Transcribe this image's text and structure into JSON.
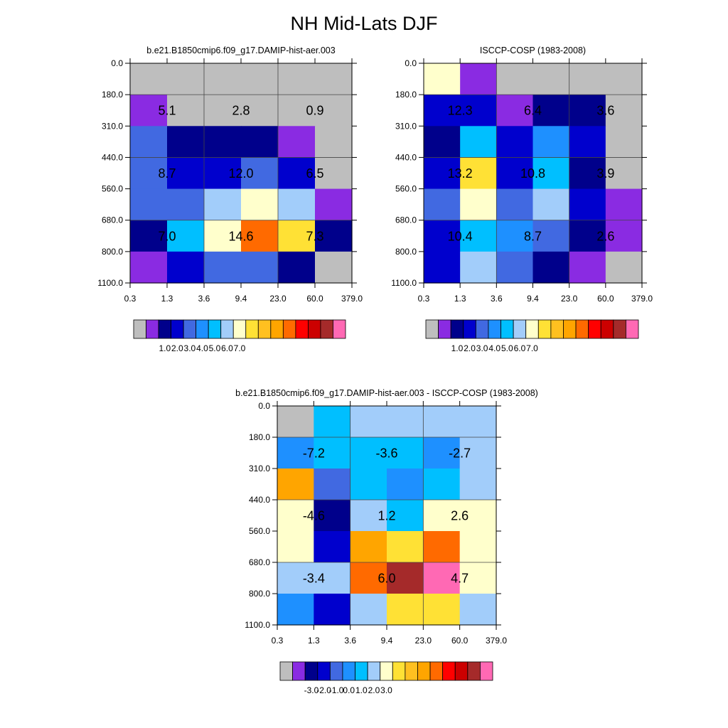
{
  "figure": {
    "title": "NH Mid-Lats DJF"
  },
  "chart_data": [
    {
      "type": "heatmap",
      "title": "b.e21.B1850cmip6.f09_g17.DAMIP-hist-aer.003",
      "x_ticks": [
        "0.3",
        "1.3",
        "3.6",
        "9.4",
        "23.0",
        "60.0",
        "379.0"
      ],
      "y_ticks": [
        "0.0",
        "180.0",
        "310.0",
        "440.0",
        "560.0",
        "680.0",
        "800.0",
        "1100.0"
      ],
      "cell_colors": [
        [
          "#bebebe",
          "#bebebe",
          "#bebebe",
          "#bebebe",
          "#bebebe",
          "#bebebe"
        ],
        [
          "#8a2be2",
          "#bebebe",
          "#bebebe",
          "#bebebe",
          "#bebebe",
          "#bebebe"
        ],
        [
          "#4169e1",
          "#00008b",
          "#00008b",
          "#00008b",
          "#8a2be2",
          "#bebebe"
        ],
        [
          "#4169e1",
          "#0000cd",
          "#0000cd",
          "#4169e1",
          "#0000cd",
          "#bebebe"
        ],
        [
          "#4169e1",
          "#4169e1",
          "#a2cdfa",
          "#ffffcc",
          "#a2cdfa",
          "#8a2be2"
        ],
        [
          "#00008b",
          "#00bfff",
          "#ffffcc",
          "#ff6a00",
          "#ffe135",
          "#00008b"
        ],
        [
          "#8a2be2",
          "#0000cd",
          "#4169e1",
          "#4169e1",
          "#00008b",
          "#bebebe"
        ]
      ],
      "block_labels": [
        [
          "5.1",
          "2.8",
          "0.9"
        ],
        [
          "8.7",
          "12.0",
          "6.5"
        ],
        [
          "7.0",
          "14.6",
          "7.3"
        ]
      ],
      "colorbar": {
        "colors": [
          "#bebebe",
          "#8a2be2",
          "#00008b",
          "#0000cd",
          "#4169e1",
          "#1e90ff",
          "#00bfff",
          "#a2cdfa",
          "#ffffcc",
          "#ffe135",
          "#ffc020",
          "#ffa500",
          "#ff6a00",
          "#ff0000",
          "#cc0000",
          "#a52a2a",
          "#ff69b4"
        ],
        "labels": [
          "1.0",
          "2.0",
          "3.0",
          "4.0",
          "5.0",
          "6.0",
          "7.0"
        ]
      }
    },
    {
      "type": "heatmap",
      "title": "ISCCP-COSP (1983-2008)",
      "x_ticks": [
        "0.3",
        "1.3",
        "3.6",
        "9.4",
        "23.0",
        "60.0",
        "379.0"
      ],
      "y_ticks": [
        "0.0",
        "180.0",
        "310.0",
        "440.0",
        "560.0",
        "680.0",
        "800.0",
        "1100.0"
      ],
      "cell_colors": [
        [
          "#ffffcc",
          "#8a2be2",
          "#bebebe",
          "#bebebe",
          "#bebebe",
          "#bebebe"
        ],
        [
          "#0000cd",
          "#0000cd",
          "#8a2be2",
          "#00008b",
          "#00008b",
          "#bebebe"
        ],
        [
          "#00008b",
          "#00bfff",
          "#0000cd",
          "#1e90ff",
          "#0000cd",
          "#bebebe"
        ],
        [
          "#0000cd",
          "#ffe135",
          "#0000cd",
          "#00bfff",
          "#00008b",
          "#bebebe"
        ],
        [
          "#4169e1",
          "#ffffcc",
          "#4169e1",
          "#a2cdfa",
          "#0000cd",
          "#8a2be2"
        ],
        [
          "#0000cd",
          "#00bfff",
          "#1e90ff",
          "#4169e1",
          "#00008b",
          "#8a2be2"
        ],
        [
          "#0000cd",
          "#a2cdfa",
          "#4169e1",
          "#00008b",
          "#8a2be2",
          "#bebebe"
        ]
      ],
      "block_labels": [
        [
          "12.3",
          "6.4",
          "3.6"
        ],
        [
          "13.2",
          "10.8",
          "3.9"
        ],
        [
          "10.4",
          "8.7",
          "2.6"
        ]
      ],
      "colorbar": {
        "colors": [
          "#bebebe",
          "#8a2be2",
          "#00008b",
          "#0000cd",
          "#4169e1",
          "#1e90ff",
          "#00bfff",
          "#a2cdfa",
          "#ffffcc",
          "#ffe135",
          "#ffc020",
          "#ffa500",
          "#ff6a00",
          "#ff0000",
          "#cc0000",
          "#a52a2a",
          "#ff69b4"
        ],
        "labels": [
          "1.0",
          "2.0",
          "3.0",
          "4.0",
          "5.0",
          "6.0",
          "7.0"
        ]
      }
    },
    {
      "type": "heatmap",
      "title": "b.e21.B1850cmip6.f09_g17.DAMIP-hist-aer.003 - ISCCP-COSP (1983-2008)",
      "x_ticks": [
        "0.3",
        "1.3",
        "3.6",
        "9.4",
        "23.0",
        "60.0",
        "379.0"
      ],
      "y_ticks": [
        "0.0",
        "180.0",
        "310.0",
        "440.0",
        "560.0",
        "680.0",
        "800.0",
        "1100.0"
      ],
      "cell_colors": [
        [
          "#bebebe",
          "#00bfff",
          "#a2cdfa",
          "#a2cdfa",
          "#a2cdfa",
          "#a2cdfa"
        ],
        [
          "#1e90ff",
          "#00bfff",
          "#00bfff",
          "#00bfff",
          "#1e90ff",
          "#a2cdfa"
        ],
        [
          "#ffa500",
          "#4169e1",
          "#00bfff",
          "#1e90ff",
          "#00bfff",
          "#a2cdfa"
        ],
        [
          "#ffffcc",
          "#00008b",
          "#a2cdfa",
          "#00bfff",
          "#ffffcc",
          "#ffffcc"
        ],
        [
          "#ffffcc",
          "#0000cd",
          "#ffa500",
          "#ffe135",
          "#ff6a00",
          "#ffffcc"
        ],
        [
          "#a2cdfa",
          "#a2cdfa",
          "#ff6a00",
          "#a52a2a",
          "#ff69b4",
          "#ffffcc"
        ],
        [
          "#1e90ff",
          "#0000cd",
          "#a2cdfa",
          "#ffe135",
          "#ffe135",
          "#a2cdfa"
        ]
      ],
      "block_labels": [
        [
          "-7.2",
          "-3.6",
          "-2.7"
        ],
        [
          "-4.6",
          "1.2",
          "2.6"
        ],
        [
          "-3.4",
          "6.0",
          "4.7"
        ]
      ],
      "colorbar": {
        "colors": [
          "#bebebe",
          "#8a2be2",
          "#00008b",
          "#0000cd",
          "#4169e1",
          "#1e90ff",
          "#00bfff",
          "#a2cdfa",
          "#ffffcc",
          "#ffe135",
          "#ffc020",
          "#ffa500",
          "#ff6a00",
          "#ff0000",
          "#cc0000",
          "#a52a2a",
          "#ff69b4"
        ],
        "labels": [
          "-3.0",
          "-2.0",
          "-1.0",
          "0.0",
          "1.0",
          "2.0",
          "3.0"
        ]
      }
    }
  ]
}
